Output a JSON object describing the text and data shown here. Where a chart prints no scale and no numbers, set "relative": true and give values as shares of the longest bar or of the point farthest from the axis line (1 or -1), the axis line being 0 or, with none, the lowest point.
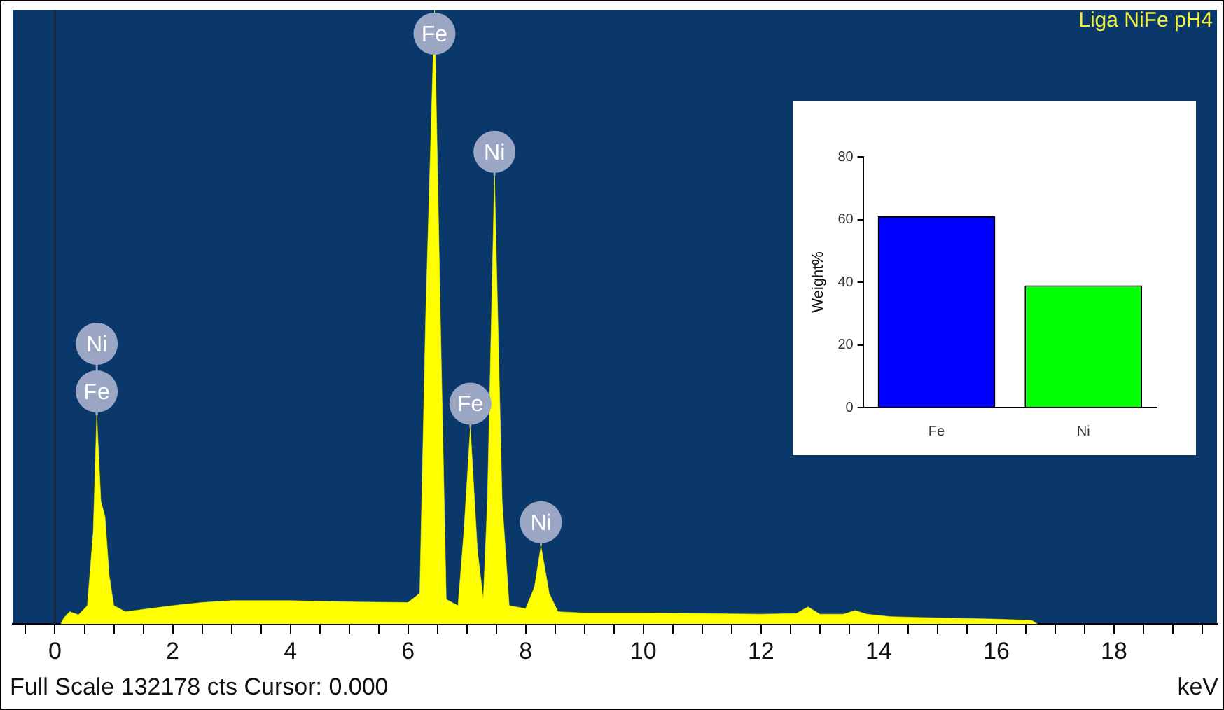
{
  "chart_data": [
    {
      "type": "area",
      "title": "Liga NiFe pH4",
      "xlabel": "keV",
      "relative": true,
      "xlim": [
        -0.72,
        19.75
      ],
      "xticks": [
        {
          "value": -0.5,
          "label": null
        },
        0,
        {
          "value": 0.5,
          "label": null
        },
        {
          "value": 1,
          "label": null
        },
        {
          "value": 1.5,
          "label": null
        },
        2,
        {
          "value": 2.5,
          "label": null
        },
        {
          "value": 3,
          "label": null
        },
        {
          "value": 3.5,
          "label": null
        },
        4,
        {
          "value": 4.5,
          "label": null
        },
        {
          "value": 5,
          "label": null
        },
        {
          "value": 5.5,
          "label": null
        },
        6,
        {
          "value": 6.5,
          "label": null
        },
        {
          "value": 7,
          "label": null
        },
        {
          "value": 7.5,
          "label": null
        },
        8,
        {
          "value": 8.5,
          "label": null
        },
        {
          "value": 9,
          "label": null
        },
        {
          "value": 9.5,
          "label": null
        },
        10,
        {
          "value": 10.5,
          "label": null
        },
        {
          "value": 11,
          "label": null
        },
        {
          "value": 11.5,
          "label": null
        },
        12,
        {
          "value": 12.5,
          "label": null
        },
        {
          "value": 13,
          "label": null
        },
        {
          "value": 13.5,
          "label": null
        },
        14,
        {
          "value": 14.5,
          "label": null
        },
        {
          "value": 15,
          "label": null
        },
        {
          "value": 15.5,
          "label": null
        },
        16,
        {
          "value": 16.5,
          "label": null
        },
        {
          "value": 17,
          "label": null
        },
        {
          "value": 17.5,
          "label": null
        },
        18,
        {
          "value": 18.5,
          "label": null
        },
        {
          "value": 19,
          "label": null
        },
        {
          "value": 19.5,
          "label": null
        }
      ],
      "series": [
        {
          "color": "#ffff00",
          "x": [
            0.1,
            0.15,
            0.25,
            0.4,
            0.55,
            0.65,
            0.71,
            0.78,
            0.85,
            0.92,
            1.0,
            1.2,
            1.6,
            2.0,
            2.5,
            3.0,
            4.0,
            5.0,
            6.0,
            6.2,
            6.3,
            6.45,
            6.55,
            6.65,
            6.85,
            6.95,
            7.06,
            7.18,
            7.28,
            7.35,
            7.47,
            7.6,
            7.72,
            8.0,
            8.15,
            8.26,
            8.4,
            8.55,
            9,
            10,
            11,
            12,
            12.6,
            12.8,
            13.0,
            13.4,
            13.6,
            13.8,
            14.2,
            15,
            16,
            16.6,
            16.7
          ],
          "values": [
            0,
            0.01,
            0.02,
            0.015,
            0.03,
            0.15,
            0.34,
            0.2,
            0.175,
            0.08,
            0.03,
            0.02,
            0.025,
            0.03,
            0.035,
            0.038,
            0.038,
            0.036,
            0.035,
            0.05,
            0.5,
            1,
            0.5,
            0.04,
            0.03,
            0.15,
            0.32,
            0.12,
            0.04,
            0.2,
            0.73,
            0.2,
            0.03,
            0.025,
            0.06,
            0.127,
            0.05,
            0.02,
            0.018,
            0.018,
            0.017,
            0.016,
            0.017,
            0.028,
            0.016,
            0.016,
            0.022,
            0.016,
            0.012,
            0.01,
            0.008,
            0.006,
            0
          ]
        }
      ],
      "ref_lines": [
        {
          "axis": "x",
          "value": 0,
          "color": "#1a2a3a"
        }
      ],
      "annotations": [
        {
          "text": "Fe",
          "x": 0.71,
          "y": 0.34
        },
        {
          "text": "Ni",
          "x": 0.71,
          "y": 0.34
        },
        {
          "text": "Fe",
          "x": 6.45,
          "y": 1
        },
        {
          "text": "Ni",
          "x": 7.47,
          "y": 0.73
        },
        {
          "text": "Fe",
          "x": 7.06,
          "y": 0.32
        },
        {
          "text": "Ni",
          "x": 8.26,
          "y": 0.127
        },
        "Full Scale 132178 cts Cursor: 0.000"
      ]
    },
    {
      "type": "bar",
      "categories": [
        "Fe",
        "Ni"
      ],
      "values": [
        61,
        39
      ],
      "colors": [
        "#0000ff",
        "#00ff00"
      ],
      "ylabel": "Weight%",
      "ylim": [
        0,
        80
      ],
      "yticks": [
        0,
        20,
        40,
        60,
        80
      ]
    }
  ]
}
